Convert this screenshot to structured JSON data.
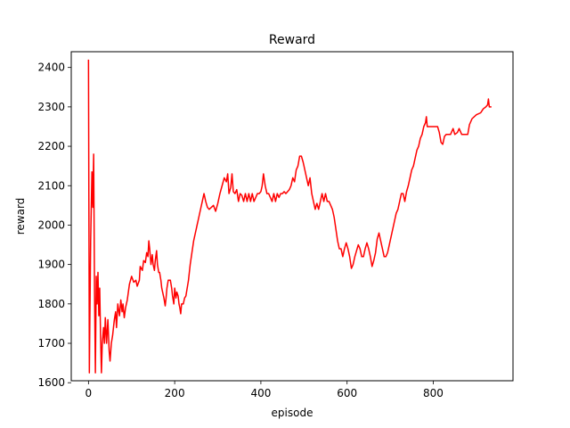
{
  "chart_data": {
    "type": "line",
    "title": "Reward",
    "xlabel": "episode",
    "ylabel": "reward",
    "xlim": [
      -40,
      985
    ],
    "ylim": [
      1605,
      2440
    ],
    "xticks": [
      0,
      200,
      400,
      600,
      800
    ],
    "yticks": [
      1600,
      1700,
      1800,
      1900,
      2000,
      2100,
      2200,
      2300,
      2400
    ],
    "grid": false,
    "legend": "none",
    "series": [
      {
        "color": "#ff0000",
        "points": [
          [
            0,
            2420
          ],
          [
            2,
            1625
          ],
          [
            5,
            1960
          ],
          [
            8,
            2135
          ],
          [
            10,
            2045
          ],
          [
            12,
            2180
          ],
          [
            14,
            1830
          ],
          [
            16,
            1625
          ],
          [
            18,
            1870
          ],
          [
            20,
            1800
          ],
          [
            22,
            1880
          ],
          [
            24,
            1770
          ],
          [
            26,
            1840
          ],
          [
            28,
            1720
          ],
          [
            30,
            1625
          ],
          [
            32,
            1700
          ],
          [
            35,
            1740
          ],
          [
            37,
            1700
          ],
          [
            39,
            1765
          ],
          [
            42,
            1700
          ],
          [
            45,
            1760
          ],
          [
            48,
            1680
          ],
          [
            50,
            1655
          ],
          [
            53,
            1700
          ],
          [
            56,
            1720
          ],
          [
            60,
            1760
          ],
          [
            63,
            1780
          ],
          [
            65,
            1740
          ],
          [
            68,
            1800
          ],
          [
            72,
            1770
          ],
          [
            75,
            1810
          ],
          [
            78,
            1780
          ],
          [
            80,
            1800
          ],
          [
            83,
            1765
          ],
          [
            86,
            1790
          ],
          [
            90,
            1810
          ],
          [
            95,
            1850
          ],
          [
            100,
            1870
          ],
          [
            105,
            1855
          ],
          [
            110,
            1860
          ],
          [
            113,
            1845
          ],
          [
            118,
            1860
          ],
          [
            120,
            1895
          ],
          [
            125,
            1885
          ],
          [
            128,
            1910
          ],
          [
            132,
            1905
          ],
          [
            135,
            1930
          ],
          [
            138,
            1920
          ],
          [
            140,
            1960
          ],
          [
            142,
            1940
          ],
          [
            145,
            1900
          ],
          [
            148,
            1925
          ],
          [
            150,
            1900
          ],
          [
            153,
            1885
          ],
          [
            155,
            1910
          ],
          [
            158,
            1935
          ],
          [
            160,
            1900
          ],
          [
            163,
            1880
          ],
          [
            165,
            1880
          ],
          [
            168,
            1860
          ],
          [
            170,
            1840
          ],
          [
            172,
            1830
          ],
          [
            175,
            1815
          ],
          [
            178,
            1795
          ],
          [
            180,
            1815
          ],
          [
            182,
            1840
          ],
          [
            185,
            1860
          ],
          [
            190,
            1860
          ],
          [
            193,
            1840
          ],
          [
            195,
            1820
          ],
          [
            198,
            1800
          ],
          [
            200,
            1840
          ],
          [
            203,
            1815
          ],
          [
            205,
            1830
          ],
          [
            208,
            1820
          ],
          [
            210,
            1800
          ],
          [
            212,
            1790
          ],
          [
            214,
            1775
          ],
          [
            216,
            1800
          ],
          [
            220,
            1800
          ],
          [
            223,
            1815
          ],
          [
            226,
            1820
          ],
          [
            229,
            1840
          ],
          [
            232,
            1860
          ],
          [
            236,
            1900
          ],
          [
            240,
            1930
          ],
          [
            244,
            1960
          ],
          [
            248,
            1980
          ],
          [
            252,
            2000
          ],
          [
            256,
            2020
          ],
          [
            260,
            2040
          ],
          [
            264,
            2060
          ],
          [
            268,
            2080
          ],
          [
            272,
            2060
          ],
          [
            276,
            2045
          ],
          [
            280,
            2040
          ],
          [
            285,
            2045
          ],
          [
            290,
            2050
          ],
          [
            295,
            2035
          ],
          [
            300,
            2055
          ],
          [
            305,
            2080
          ],
          [
            310,
            2100
          ],
          [
            315,
            2120
          ],
          [
            320,
            2110
          ],
          [
            323,
            2130
          ],
          [
            326,
            2080
          ],
          [
            330,
            2095
          ],
          [
            333,
            2130
          ],
          [
            336,
            2085
          ],
          [
            340,
            2080
          ],
          [
            344,
            2090
          ],
          [
            348,
            2060
          ],
          [
            352,
            2080
          ],
          [
            356,
            2075
          ],
          [
            360,
            2060
          ],
          [
            364,
            2080
          ],
          [
            368,
            2060
          ],
          [
            372,
            2080
          ],
          [
            376,
            2060
          ],
          [
            380,
            2080
          ],
          [
            384,
            2060
          ],
          [
            388,
            2070
          ],
          [
            392,
            2080
          ],
          [
            396,
            2080
          ],
          [
            400,
            2085
          ],
          [
            403,
            2100
          ],
          [
            406,
            2130
          ],
          [
            410,
            2100
          ],
          [
            414,
            2080
          ],
          [
            418,
            2080
          ],
          [
            422,
            2070
          ],
          [
            426,
            2060
          ],
          [
            430,
            2080
          ],
          [
            434,
            2060
          ],
          [
            438,
            2080
          ],
          [
            442,
            2070
          ],
          [
            446,
            2080
          ],
          [
            450,
            2080
          ],
          [
            454,
            2085
          ],
          [
            458,
            2080
          ],
          [
            462,
            2085
          ],
          [
            466,
            2090
          ],
          [
            470,
            2100
          ],
          [
            474,
            2120
          ],
          [
            478,
            2110
          ],
          [
            482,
            2140
          ],
          [
            486,
            2150
          ],
          [
            490,
            2175
          ],
          [
            494,
            2175
          ],
          [
            498,
            2160
          ],
          [
            502,
            2140
          ],
          [
            506,
            2120
          ],
          [
            510,
            2100
          ],
          [
            514,
            2120
          ],
          [
            518,
            2080
          ],
          [
            522,
            2060
          ],
          [
            526,
            2040
          ],
          [
            530,
            2055
          ],
          [
            534,
            2040
          ],
          [
            538,
            2060
          ],
          [
            542,
            2080
          ],
          [
            546,
            2060
          ],
          [
            550,
            2080
          ],
          [
            554,
            2060
          ],
          [
            558,
            2060
          ],
          [
            562,
            2050
          ],
          [
            566,
            2040
          ],
          [
            570,
            2020
          ],
          [
            574,
            1990
          ],
          [
            578,
            1960
          ],
          [
            582,
            1940
          ],
          [
            586,
            1940
          ],
          [
            590,
            1920
          ],
          [
            594,
            1940
          ],
          [
            598,
            1955
          ],
          [
            602,
            1940
          ],
          [
            606,
            1920
          ],
          [
            610,
            1890
          ],
          [
            614,
            1900
          ],
          [
            618,
            1920
          ],
          [
            622,
            1935
          ],
          [
            626,
            1950
          ],
          [
            630,
            1940
          ],
          [
            634,
            1920
          ],
          [
            638,
            1920
          ],
          [
            642,
            1940
          ],
          [
            646,
            1955
          ],
          [
            650,
            1940
          ],
          [
            654,
            1920
          ],
          [
            658,
            1895
          ],
          [
            662,
            1910
          ],
          [
            666,
            1930
          ],
          [
            670,
            1965
          ],
          [
            674,
            1980
          ],
          [
            678,
            1960
          ],
          [
            682,
            1940
          ],
          [
            686,
            1920
          ],
          [
            690,
            1920
          ],
          [
            694,
            1930
          ],
          [
            698,
            1950
          ],
          [
            702,
            1970
          ],
          [
            706,
            1990
          ],
          [
            710,
            2010
          ],
          [
            714,
            2030
          ],
          [
            718,
            2040
          ],
          [
            722,
            2060
          ],
          [
            726,
            2080
          ],
          [
            730,
            2080
          ],
          [
            734,
            2060
          ],
          [
            738,
            2085
          ],
          [
            742,
            2100
          ],
          [
            746,
            2120
          ],
          [
            750,
            2140
          ],
          [
            754,
            2150
          ],
          [
            758,
            2170
          ],
          [
            762,
            2190
          ],
          [
            766,
            2200
          ],
          [
            770,
            2220
          ],
          [
            774,
            2230
          ],
          [
            778,
            2250
          ],
          [
            782,
            2260
          ],
          [
            784,
            2275
          ],
          [
            786,
            2250
          ],
          [
            790,
            2250
          ],
          [
            800,
            2250
          ],
          [
            810,
            2250
          ],
          [
            814,
            2235
          ],
          [
            818,
            2210
          ],
          [
            822,
            2205
          ],
          [
            826,
            2225
          ],
          [
            830,
            2230
          ],
          [
            840,
            2230
          ],
          [
            846,
            2245
          ],
          [
            850,
            2230
          ],
          [
            856,
            2235
          ],
          [
            860,
            2245
          ],
          [
            866,
            2230
          ],
          [
            870,
            2230
          ],
          [
            880,
            2230
          ],
          [
            884,
            2255
          ],
          [
            890,
            2270
          ],
          [
            900,
            2280
          ],
          [
            910,
            2285
          ],
          [
            916,
            2295
          ],
          [
            922,
            2300
          ],
          [
            926,
            2305
          ],
          [
            928,
            2320
          ],
          [
            930,
            2300
          ],
          [
            935,
            2300
          ]
        ]
      }
    ]
  }
}
